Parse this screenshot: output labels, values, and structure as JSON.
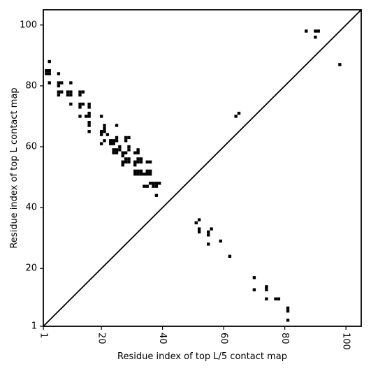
{
  "chart_data": {
    "type": "scatter",
    "xlabel": "Residue index of top L/5 contact map",
    "ylabel": "Residue index of top L contact map",
    "xlim": [
      1,
      105
    ],
    "ylim": [
      1,
      105
    ],
    "x_ticks": [
      1,
      20,
      40,
      60,
      80,
      100
    ],
    "y_ticks": [
      1,
      20,
      40,
      60,
      80,
      100
    ],
    "x_tick_labels": [
      "1",
      "20",
      "40",
      "60",
      "80",
      "100"
    ],
    "y_tick_labels": [
      "1",
      "20",
      "40",
      "60",
      "80",
      "100"
    ],
    "x_tick_label_rotation": 90,
    "grid": false,
    "diagonal_line": true,
    "marker": "square",
    "marker_color": "#000000",
    "series": [
      {
        "points_top_L": [
          [
            2,
            84
          ],
          [
            2,
            85
          ],
          [
            3,
            84
          ],
          [
            3,
            85
          ],
          [
            3,
            88
          ],
          [
            3,
            81
          ],
          [
            6,
            84
          ],
          [
            6,
            81
          ],
          [
            6,
            80
          ],
          [
            7,
            81
          ],
          [
            6,
            78
          ],
          [
            6,
            77
          ],
          [
            7,
            78
          ],
          [
            9,
            78
          ],
          [
            9,
            77
          ],
          [
            10,
            81
          ],
          [
            10,
            78
          ],
          [
            10,
            77
          ],
          [
            10,
            74
          ],
          [
            13,
            78
          ],
          [
            13,
            77
          ],
          [
            13,
            74
          ],
          [
            13,
            73
          ],
          [
            14,
            74
          ],
          [
            14,
            78
          ],
          [
            13,
            70
          ],
          [
            16,
            74
          ],
          [
            16,
            73
          ],
          [
            16,
            71
          ],
          [
            16,
            70
          ],
          [
            16,
            68
          ],
          [
            16,
            67
          ],
          [
            16,
            65
          ],
          [
            15,
            70
          ],
          [
            20,
            70
          ],
          [
            20,
            65
          ],
          [
            20,
            64
          ],
          [
            20,
            61
          ],
          [
            21,
            67
          ],
          [
            21,
            66
          ],
          [
            21,
            65
          ],
          [
            21,
            62
          ],
          [
            22,
            64
          ],
          [
            23,
            62
          ],
          [
            23,
            61
          ],
          [
            24,
            62
          ],
          [
            24,
            61
          ],
          [
            24,
            59
          ],
          [
            24,
            58
          ],
          [
            25,
            63
          ],
          [
            25,
            59
          ],
          [
            25,
            58
          ],
          [
            25,
            67
          ],
          [
            25,
            62
          ],
          [
            26,
            60
          ],
          [
            26,
            59
          ],
          [
            27,
            58
          ],
          [
            27,
            57
          ],
          [
            27,
            55
          ],
          [
            27,
            54
          ],
          [
            28,
            63
          ],
          [
            28,
            62
          ],
          [
            28,
            58
          ],
          [
            28,
            56
          ],
          [
            28,
            55
          ],
          [
            29,
            63
          ],
          [
            29,
            60
          ],
          [
            29,
            59
          ],
          [
            29,
            56
          ],
          [
            29,
            55
          ],
          [
            31,
            58
          ],
          [
            31,
            55
          ],
          [
            31,
            54
          ],
          [
            31,
            52
          ],
          [
            31,
            51
          ],
          [
            32,
            59
          ],
          [
            32,
            58
          ],
          [
            32,
            56
          ],
          [
            32,
            55
          ],
          [
            32,
            52
          ],
          [
            32,
            51
          ],
          [
            33,
            56
          ],
          [
            33,
            55
          ],
          [
            33,
            52
          ],
          [
            33,
            51
          ],
          [
            34,
            51
          ],
          [
            34,
            47
          ],
          [
            35,
            47
          ],
          [
            35,
            55
          ],
          [
            35,
            52
          ],
          [
            35,
            51
          ],
          [
            36,
            55
          ],
          [
            36,
            52
          ],
          [
            36,
            51
          ],
          [
            36,
            48
          ],
          [
            37,
            48
          ],
          [
            37,
            47
          ],
          [
            38,
            48
          ],
          [
            38,
            47
          ],
          [
            38,
            44
          ],
          [
            39,
            48
          ],
          [
            64,
            70
          ],
          [
            65,
            71
          ],
          [
            87,
            98
          ],
          [
            90,
            98
          ],
          [
            91,
            98
          ],
          [
            90,
            96
          ],
          [
            98,
            87
          ]
        ],
        "points_top_L5": [
          [
            51,
            35
          ],
          [
            52,
            36
          ],
          [
            52,
            33
          ],
          [
            52,
            32
          ],
          [
            55,
            32
          ],
          [
            55,
            31
          ],
          [
            56,
            33
          ],
          [
            55,
            28
          ],
          [
            59,
            29
          ],
          [
            62,
            24
          ],
          [
            70,
            17
          ],
          [
            70,
            13
          ],
          [
            74,
            14
          ],
          [
            74,
            13
          ],
          [
            74,
            10
          ],
          [
            77,
            10
          ],
          [
            78,
            10
          ],
          [
            81,
            7
          ],
          [
            81,
            6
          ],
          [
            81,
            3
          ]
        ]
      }
    ]
  }
}
